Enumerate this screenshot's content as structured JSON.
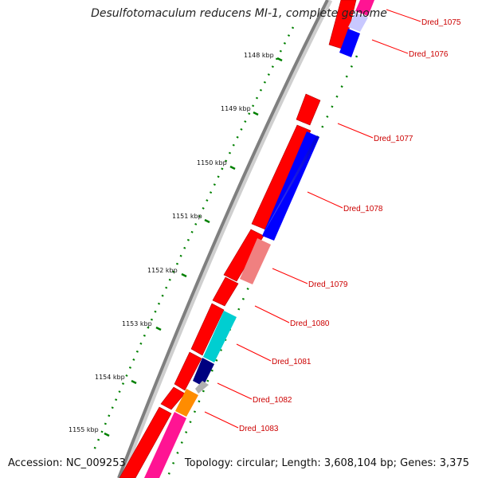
{
  "title": "Desulfotomaculum reducens MI-1, complete genome",
  "footer": {
    "accession": "Accession: NC_009253",
    "topology": "Topology: circular; Length: 3,608,104 bp; Genes: 3,375"
  },
  "kbp_ticks": [
    "1148 kbp",
    "1149 kbp",
    "1150 kbp",
    "1151 kbp",
    "1152 kbp",
    "1153 kbp",
    "1154 kbp",
    "1155 kbp"
  ],
  "genes": [
    "Dred_1075",
    "Dred_1076",
    "Dred_1077",
    "Dred_1078",
    "Dred_1079",
    "Dred_1080",
    "Dred_1081",
    "Dred_1082",
    "Dred_1083"
  ],
  "colors": {
    "forward_cds": "#ff0000",
    "label": "#cc0000",
    "backbone": "#808080",
    "gc_dots": "#008000",
    "cog_blue": "#0000ff",
    "cog_magenta": "#ff1493",
    "cog_pink": "#f08080",
    "cog_cyan": "#00ced1",
    "cog_navy": "#000080",
    "cog_orange": "#ff8c00"
  }
}
